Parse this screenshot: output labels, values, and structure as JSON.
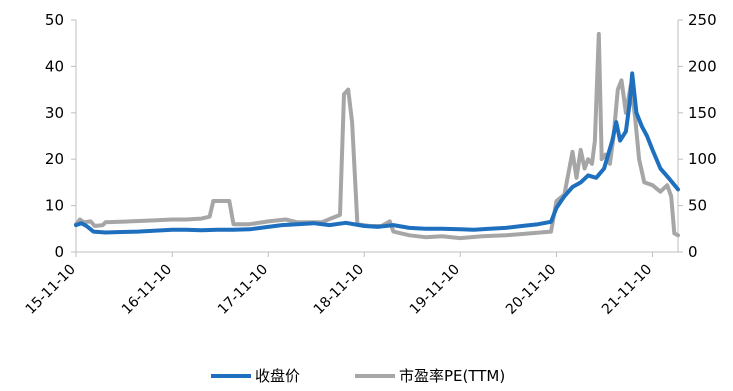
{
  "chart_data": {
    "type": "line",
    "title": "",
    "xlabel": "",
    "y_left": {
      "ylim": [
        0,
        50
      ],
      "ticks": [
        "0",
        "10",
        "20",
        "30",
        "40",
        "50"
      ]
    },
    "y_right": {
      "ylim": [
        0,
        250
      ],
      "ticks": [
        "0",
        "50",
        "100",
        "150",
        "200",
        "250"
      ]
    },
    "x_range": [
      "2015-11-10",
      "2022-02-15"
    ],
    "x_ticks": [
      {
        "date": "2015-11-10",
        "label": "15-11-10"
      },
      {
        "date": "2016-11-10",
        "label": "16-11-10"
      },
      {
        "date": "2017-11-10",
        "label": "17-11-10"
      },
      {
        "date": "2018-11-10",
        "label": "18-11-10"
      },
      {
        "date": "2019-11-10",
        "label": "19-11-10"
      },
      {
        "date": "2020-11-10",
        "label": "20-11-10"
      },
      {
        "date": "2021-11-10",
        "label": "21-11-10"
      }
    ],
    "grid": false,
    "legend_position": "bottom",
    "series": [
      {
        "name": "收盘价",
        "axis": "left",
        "color": "#1f6fbf",
        "points": [
          [
            "2015-11-10",
            5.8
          ],
          [
            "2015-12-01",
            6.2
          ],
          [
            "2015-12-20",
            5.6
          ],
          [
            "2016-01-15",
            4.4
          ],
          [
            "2016-03-01",
            4.2
          ],
          [
            "2016-05-01",
            4.3
          ],
          [
            "2016-07-01",
            4.4
          ],
          [
            "2016-09-01",
            4.6
          ],
          [
            "2016-11-10",
            4.8
          ],
          [
            "2017-01-01",
            4.8
          ],
          [
            "2017-03-01",
            4.7
          ],
          [
            "2017-05-01",
            4.8
          ],
          [
            "2017-07-01",
            4.8
          ],
          [
            "2017-09-01",
            4.9
          ],
          [
            "2017-11-10",
            5.4
          ],
          [
            "2018-01-01",
            5.8
          ],
          [
            "2018-03-01",
            6.0
          ],
          [
            "2018-05-01",
            6.2
          ],
          [
            "2018-07-01",
            5.8
          ],
          [
            "2018-09-01",
            6.3
          ],
          [
            "2018-11-10",
            5.6
          ],
          [
            "2019-01-01",
            5.4
          ],
          [
            "2019-03-01",
            5.8
          ],
          [
            "2019-05-01",
            5.2
          ],
          [
            "2019-07-01",
            5.0
          ],
          [
            "2019-09-01",
            5.0
          ],
          [
            "2019-11-10",
            4.9
          ],
          [
            "2020-01-01",
            4.8
          ],
          [
            "2020-03-01",
            5.0
          ],
          [
            "2020-05-01",
            5.2
          ],
          [
            "2020-07-01",
            5.6
          ],
          [
            "2020-09-01",
            6.0
          ],
          [
            "2020-10-20",
            6.5
          ],
          [
            "2020-11-10",
            9.5
          ],
          [
            "2020-12-10",
            12.0
          ],
          [
            "2021-01-10",
            14.0
          ],
          [
            "2021-02-10",
            15.0
          ],
          [
            "2021-03-10",
            16.5
          ],
          [
            "2021-04-10",
            16.0
          ],
          [
            "2021-05-10",
            18.0
          ],
          [
            "2021-06-10",
            24.0
          ],
          [
            "2021-06-25",
            28.0
          ],
          [
            "2021-07-10",
            24.0
          ],
          [
            "2021-08-01",
            26.0
          ],
          [
            "2021-08-15",
            32.0
          ],
          [
            "2021-08-25",
            38.5
          ],
          [
            "2021-09-10",
            30.0
          ],
          [
            "2021-10-01",
            27.0
          ],
          [
            "2021-10-20",
            25.0
          ],
          [
            "2021-11-10",
            22.0
          ],
          [
            "2021-12-10",
            18.0
          ],
          [
            "2022-01-10",
            16.0
          ],
          [
            "2022-02-15",
            13.5
          ]
        ]
      },
      {
        "name": "市盈率PE(TTM)",
        "axis": "right",
        "color": "#a6a6a6",
        "points": [
          [
            "2015-11-10",
            30
          ],
          [
            "2015-11-25",
            35
          ],
          [
            "2015-12-10",
            32
          ],
          [
            "2016-01-05",
            33
          ],
          [
            "2016-01-20",
            28
          ],
          [
            "2016-02-20",
            29
          ],
          [
            "2016-03-01",
            32
          ],
          [
            "2016-06-01",
            33
          ],
          [
            "2016-09-01",
            34
          ],
          [
            "2016-11-10",
            35
          ],
          [
            "2017-01-01",
            35
          ],
          [
            "2017-03-01",
            36
          ],
          [
            "2017-04-01",
            38
          ],
          [
            "2017-04-15",
            55
          ],
          [
            "2017-06-15",
            55
          ],
          [
            "2017-07-01",
            30
          ],
          [
            "2017-09-01",
            30
          ],
          [
            "2017-11-10",
            33
          ],
          [
            "2018-01-15",
            35
          ],
          [
            "2018-03-01",
            32
          ],
          [
            "2018-06-01",
            32
          ],
          [
            "2018-08-10",
            40
          ],
          [
            "2018-08-25",
            170
          ],
          [
            "2018-09-10",
            175
          ],
          [
            "2018-09-25",
            140
          ],
          [
            "2018-10-15",
            30
          ],
          [
            "2018-12-01",
            28
          ],
          [
            "2019-01-15",
            28
          ],
          [
            "2019-02-15",
            33
          ],
          [
            "2019-03-01",
            22
          ],
          [
            "2019-05-01",
            18
          ],
          [
            "2019-07-01",
            16
          ],
          [
            "2019-09-01",
            17
          ],
          [
            "2019-11-10",
            15
          ],
          [
            "2020-02-01",
            17
          ],
          [
            "2020-05-01",
            18
          ],
          [
            "2020-08-01",
            20
          ],
          [
            "2020-10-20",
            22
          ],
          [
            "2020-11-10",
            55
          ],
          [
            "2020-12-10",
            62
          ],
          [
            "2021-01-10",
            108
          ],
          [
            "2021-01-25",
            80
          ],
          [
            "2021-02-10",
            110
          ],
          [
            "2021-02-25",
            90
          ],
          [
            "2021-03-10",
            100
          ],
          [
            "2021-03-25",
            95
          ],
          [
            "2021-04-05",
            120
          ],
          [
            "2021-04-20",
            235
          ],
          [
            "2021-05-01",
            100
          ],
          [
            "2021-05-15",
            105
          ],
          [
            "2021-06-01",
            95
          ],
          [
            "2021-06-15",
            125
          ],
          [
            "2021-07-01",
            175
          ],
          [
            "2021-07-15",
            185
          ],
          [
            "2021-08-01",
            150
          ],
          [
            "2021-08-20",
            180
          ],
          [
            "2021-09-05",
            145
          ],
          [
            "2021-09-20",
            100
          ],
          [
            "2021-10-10",
            75
          ],
          [
            "2021-11-10",
            72
          ],
          [
            "2021-12-10",
            65
          ],
          [
            "2022-01-05",
            72
          ],
          [
            "2022-01-20",
            60
          ],
          [
            "2022-02-01",
            20
          ],
          [
            "2022-02-15",
            18
          ]
        ]
      }
    ]
  }
}
